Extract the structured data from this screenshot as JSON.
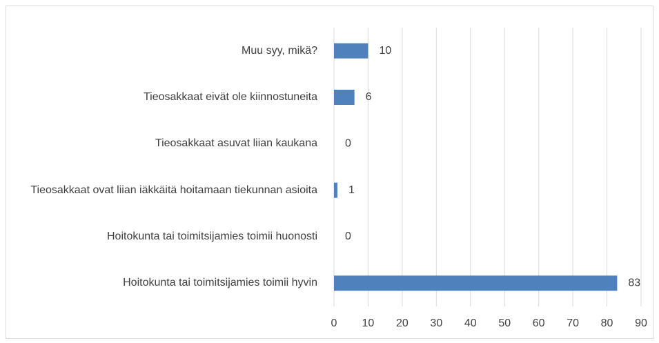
{
  "chart_data": {
    "type": "barh",
    "categories": [
      "Muu syy, mikä?",
      "Tieosakkaat eivät ole kiinnostuneita",
      "Tieosakkaat asuvat liian kaukana",
      "Tieosakkaat ovat liian iäkkäitä hoitamaan tiekunnan asioita",
      "Hoitokunta tai toimitsijamies toimii huonosti",
      "Hoitokunta tai toimitsijamies toimii hyvin"
    ],
    "values": [
      10,
      6,
      0,
      1,
      0,
      83
    ],
    "color": "#4f81bd",
    "xlim": [
      0,
      90
    ],
    "xticks": [
      0,
      10,
      20,
      30,
      40,
      50,
      60,
      70,
      80,
      90
    ],
    "grid": true
  }
}
